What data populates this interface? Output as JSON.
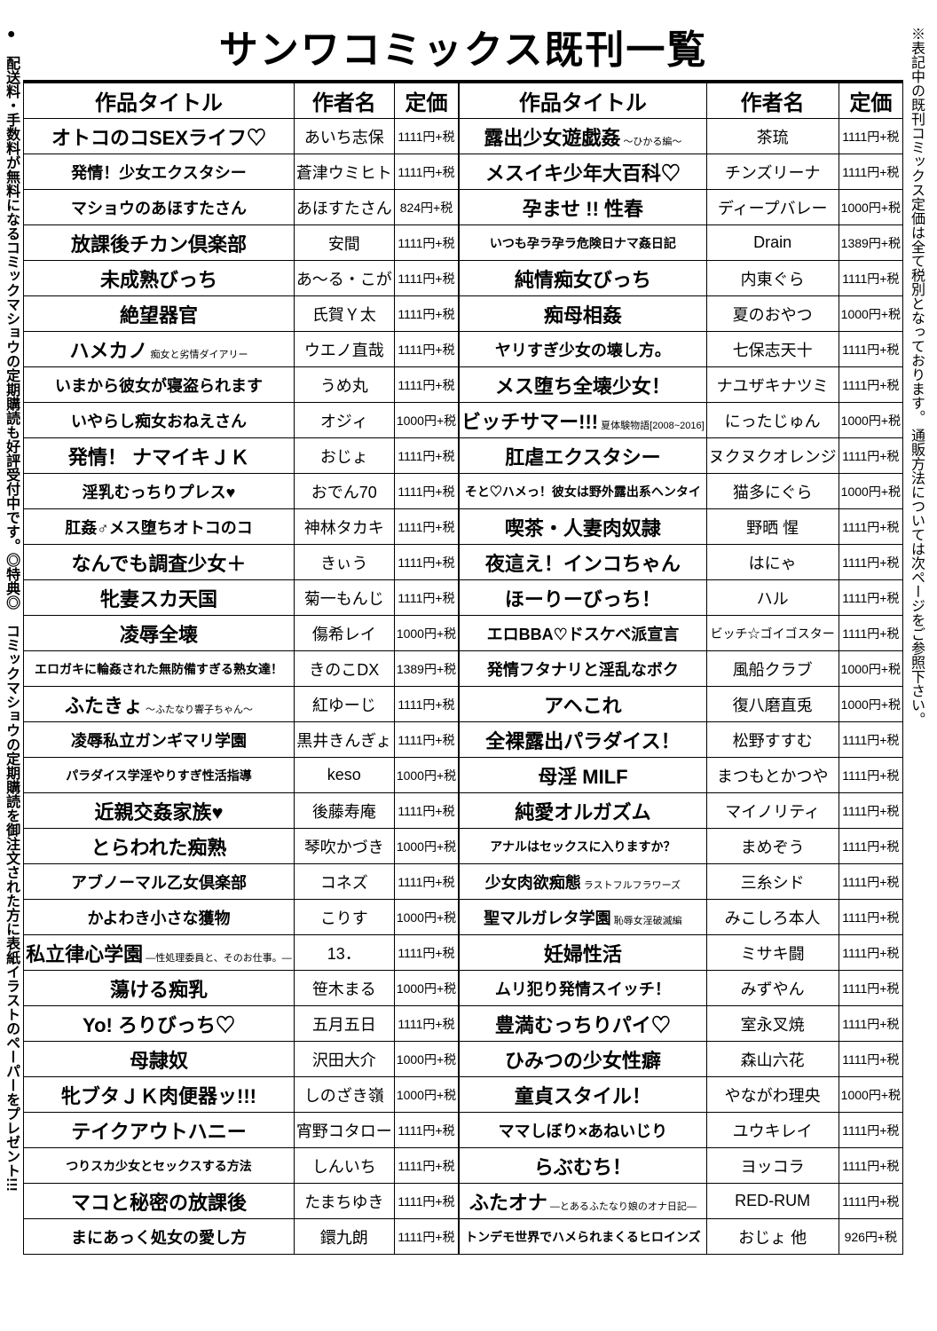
{
  "title": "サンワコミックス既刊一覧",
  "headers": {
    "title": "作品タイトル",
    "author": "作者名",
    "price": "定価"
  },
  "sidenote_right": "※表記中の既刊コミックス定価は全て税別となっております。 通販方法については次ページをご参照下さい。",
  "sidenote_left": [
    "●　配送料・手数料が無料になるコミックマショウの定期購読も好評受付中です。",
    "◎特典◎　コミックマショウの定期購読を御注文された方に表紙イラストのペーパーをプレゼント!!!"
  ],
  "left": [
    {
      "t": "オトコのコSEXライフ♡",
      "a": "あいち志保",
      "p": "1111円+税"
    },
    {
      "t": "発情！少女エクスタシー",
      "a": "蒼津ウミヒト",
      "p": "1111円+税",
      "ts": "mid"
    },
    {
      "t": "マショウのあほすたさん",
      "a": "あほすたさん",
      "p": "824円+税",
      "ts": "mid"
    },
    {
      "t": "放課後チカン倶楽部",
      "a": "安間",
      "p": "1111円+税"
    },
    {
      "t": "未成熟びっち",
      "a": "あ～る・こが",
      "p": "1111円+税"
    },
    {
      "t": "絶望器官",
      "a": "氏賀Ｙ太",
      "p": "1111円+税"
    },
    {
      "t": "ハメカノ",
      "sub": "痴女と劣情ダイアリー",
      "a": "ウエノ直哉",
      "p": "1111円+税"
    },
    {
      "t": "いまから彼女が寝盗られます",
      "a": "うめ丸",
      "p": "1111円+税",
      "ts": "mid"
    },
    {
      "t": "いやらし痴女おねえさん",
      "a": "オジィ",
      "p": "1000円+税",
      "ts": "mid"
    },
    {
      "t": "発情！ ナマイキＪＫ",
      "a": "おじょ",
      "p": "1111円+税"
    },
    {
      "t": "淫乳むっちりプレス♥",
      "a": "おでん70",
      "p": "1111円+税",
      "ts": "mid"
    },
    {
      "t": "肛姦♂メス堕ちオトコのコ",
      "a": "神林タカキ",
      "p": "1111円+税",
      "ts": "mid"
    },
    {
      "t": "なんでも調査少女＋",
      "a": "きぃう",
      "p": "1111円+税"
    },
    {
      "t": "牝妻スカ天国",
      "a": "菊一もんじ",
      "p": "1111円+税"
    },
    {
      "t": "凌辱全壊",
      "a": "傷希レイ",
      "p": "1000円+税"
    },
    {
      "t": "エロガキに輪姦された無防備すぎる熟女達！",
      "a": "きのこDX",
      "p": "1389円+税",
      "ts": "small"
    },
    {
      "t": "ふたきょ",
      "sub": "～ふたなり響子ちゃん～",
      "a": "紅ゆーじ",
      "p": "1111円+税"
    },
    {
      "t": "凌辱私立ガンギマリ学園",
      "a": "黒井きんぎょ",
      "p": "1111円+税",
      "ts": "mid"
    },
    {
      "t": "パラダイス学淫やりすぎ性活指導",
      "a": "keso",
      "p": "1000円+税",
      "ts": "small"
    },
    {
      "t": "近親交姦家族♥",
      "a": "後藤寿庵",
      "p": "1111円+税"
    },
    {
      "t": "とらわれた痴熟",
      "a": "琴吹かづき",
      "p": "1000円+税"
    },
    {
      "t": "アブノーマル乙女倶楽部",
      "a": "コネズ",
      "p": "1111円+税",
      "ts": "mid"
    },
    {
      "t": "かよわき小さな獲物",
      "a": "こりす",
      "p": "1000円+税",
      "ts": "mid"
    },
    {
      "t": "私立律心学園",
      "sub": "―性処理委員と、そのお仕事。―",
      "a": "13．",
      "p": "1111円+税"
    },
    {
      "t": "蕩ける痴乳",
      "a": "笹木まる",
      "p": "1000円+税"
    },
    {
      "t": "Yo! ろりびっち♡",
      "a": "五月五日",
      "p": "1111円+税"
    },
    {
      "t": "母隷奴",
      "a": "沢田大介",
      "p": "1000円+税"
    },
    {
      "t": "牝ブタＪＫ肉便器ッ!!!",
      "a": "しのざき嶺",
      "p": "1000円+税"
    },
    {
      "t": "テイクアウトハニー",
      "a": "宵野コタロー",
      "p": "1111円+税"
    },
    {
      "t": "つりスカ少女とセックスする方法",
      "a": "しんいち",
      "p": "1111円+税",
      "ts": "small"
    },
    {
      "t": "マコと秘密の放課後",
      "a": "たまちゆき",
      "p": "1111円+税"
    },
    {
      "t": "まにあっく処女の愛し方",
      "a": "鐶九朗",
      "p": "1111円+税",
      "ts": "mid"
    }
  ],
  "right": [
    {
      "t": "露出少女遊戯姦",
      "sub": "～ひかる編～",
      "a": "茶琉",
      "p": "1111円+税"
    },
    {
      "t": "メスイキ少年大百科♡",
      "a": "チンズリーナ",
      "p": "1111円+税"
    },
    {
      "t": "孕ませ !! 性春",
      "a": "ディープバレー",
      "p": "1000円+税"
    },
    {
      "t": "いつも孕ラ孕ラ危険日ナマ姦日記",
      "a": "Drain",
      "p": "1389円+税",
      "ts": "small"
    },
    {
      "t": "純情痴女びっち",
      "a": "内東ぐら",
      "p": "1111円+税"
    },
    {
      "t": "痴母相姦",
      "a": "夏のおやつ",
      "p": "1000円+税"
    },
    {
      "t": "ヤリすぎ少女の壊し方。",
      "a": "七保志天十",
      "p": "1111円+税",
      "ts": "mid"
    },
    {
      "t": "メス堕ち全壊少女！",
      "a": "ナユザキナツミ",
      "p": "1111円+税"
    },
    {
      "t": "ビッチサマー!!!",
      "sub": "夏体験物語[2008~2016]",
      "a": "にったじゅん",
      "p": "1000円+税"
    },
    {
      "t": "肛虐エクスタシー",
      "a": "ヌクヌクオレンジ",
      "p": "1111円+税"
    },
    {
      "t": "そと♡ハメっ！彼女は野外露出系ヘンタイ",
      "a": "猫多にぐら",
      "p": "1000円+税",
      "ts": "small"
    },
    {
      "t": "喫茶・人妻肉奴隷",
      "a": "野晒 惺",
      "p": "1111円+税"
    },
    {
      "t": "夜這え！インコちゃん",
      "a": "はにゃ",
      "p": "1111円+税"
    },
    {
      "t": "ほーりーびっち！",
      "a": "ハル",
      "p": "1111円+税"
    },
    {
      "t": "エロBBA♡ドスケベ派宣言",
      "a": "ビッチ☆ゴイゴスター",
      "p": "1111円+税",
      "ts": "mid",
      "as": "small"
    },
    {
      "t": "発情フタナリと淫乱なボク",
      "a": "風船クラブ",
      "p": "1000円+税",
      "ts": "mid"
    },
    {
      "t": "アヘこれ",
      "a": "復八磨直兎",
      "p": "1000円+税"
    },
    {
      "t": "全裸露出パラダイス！",
      "a": "松野すすむ",
      "p": "1111円+税"
    },
    {
      "t": "母淫 MILF",
      "a": "まつもとかつや",
      "p": "1111円+税"
    },
    {
      "t": "純愛オルガズム",
      "a": "マイノリティ",
      "p": "1111円+税"
    },
    {
      "t": "アナルはセックスに入りますか？",
      "a": "まめぞう",
      "p": "1111円+税",
      "ts": "small"
    },
    {
      "t": "少女肉欲痴態",
      "sub": "ラストフルフラワーズ",
      "a": "三糸シド",
      "p": "1111円+税",
      "ts": "mid"
    },
    {
      "t": "聖マルガレタ学園",
      "sub": "恥辱女淫破滅編",
      "a": "みこしろ本人",
      "p": "1111円+税",
      "ts": "mid"
    },
    {
      "t": "妊婦性活",
      "a": "ミサキ闘",
      "p": "1111円+税"
    },
    {
      "t": "ムリ犯り発情スイッチ！",
      "a": "みずやん",
      "p": "1111円+税",
      "ts": "mid"
    },
    {
      "t": "豊満むっちりパイ♡",
      "a": "室永叉焼",
      "p": "1111円+税"
    },
    {
      "t": "ひみつの少女性癖",
      "a": "森山六花",
      "p": "1111円+税"
    },
    {
      "t": "童貞スタイル！",
      "a": "やながわ理央",
      "p": "1000円+税"
    },
    {
      "t": "ママしぼり×あねいじり",
      "a": "ユウキレイ",
      "p": "1111円+税",
      "ts": "mid"
    },
    {
      "t": "らぶむち！",
      "a": "ヨッコラ",
      "p": "1111円+税"
    },
    {
      "t": "ふたオナ",
      "sub": "―とあるふたなり娘のオナ日記―",
      "a": "RED-RUM",
      "p": "1111円+税"
    },
    {
      "t": "トンデモ世界でハメられまくるヒロインズ",
      "a": "おじょ 他",
      "p": "926円+税",
      "ts": "small"
    }
  ]
}
